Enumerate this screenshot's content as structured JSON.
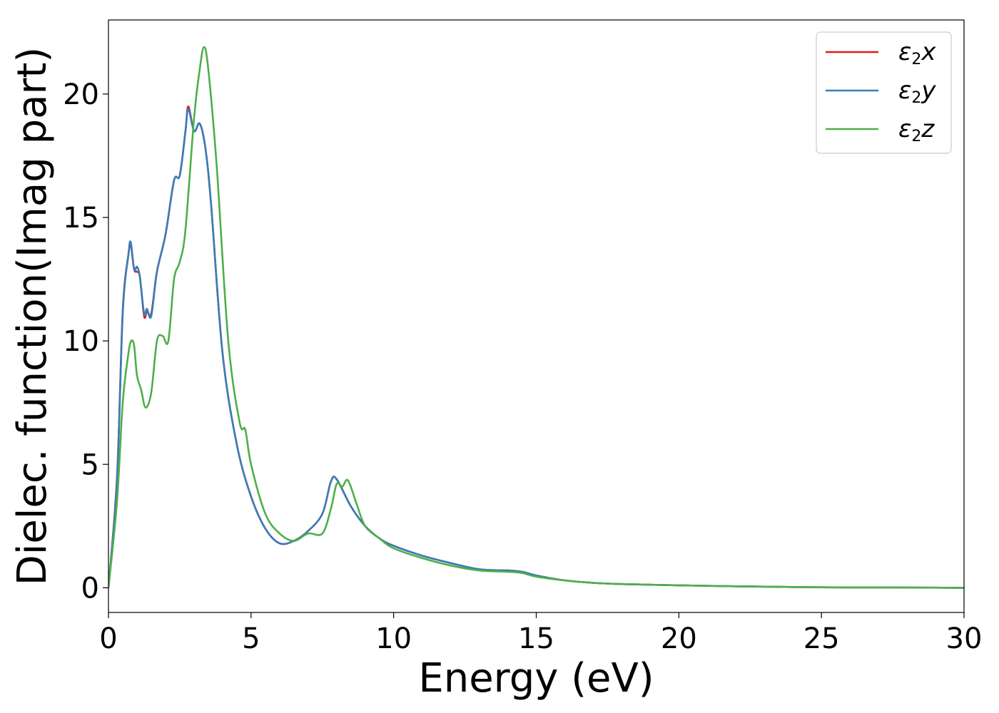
{
  "chart_data": {
    "type": "line",
    "title": "",
    "xlabel": "Energy (eV)",
    "ylabel": "Dielec. function(Imag part)",
    "xlim": [
      0,
      30
    ],
    "ylim": [
      -1,
      23
    ],
    "xticks": [
      0,
      5,
      10,
      15,
      20,
      25,
      30
    ],
    "yticks": [
      0,
      5,
      10,
      15,
      20
    ],
    "grid": false,
    "legend_position": "top-right",
    "series": [
      {
        "name": "ε2x",
        "legend": {
          "base": "ε",
          "sub": "2",
          "suffix": "x"
        },
        "color": "#e41a1c",
        "x": [
          0,
          0.3,
          0.5,
          0.7,
          0.78,
          0.9,
          1.0,
          1.1,
          1.25,
          1.35,
          1.5,
          1.7,
          2.0,
          2.3,
          2.5,
          2.7,
          2.8,
          3.0,
          3.2,
          3.4,
          3.6,
          4.0,
          4.5,
          5.0,
          5.5,
          6.0,
          6.5,
          7.0,
          7.5,
          7.8,
          8.0,
          8.5,
          9.0,
          9.5,
          10,
          11,
          12,
          13,
          14,
          14.5,
          15,
          16,
          17,
          18,
          20,
          22,
          25,
          28,
          30
        ],
        "y": [
          0,
          4.5,
          11.2,
          13.5,
          13.9,
          12.9,
          12.8,
          12.6,
          11.0,
          11.2,
          11.1,
          12.8,
          14.3,
          16.5,
          16.7,
          18.5,
          19.5,
          18.5,
          18.8,
          17.8,
          15.5,
          9.5,
          5.8,
          3.7,
          2.4,
          1.8,
          1.9,
          2.3,
          3.0,
          4.3,
          4.4,
          3.3,
          2.5,
          2.0,
          1.7,
          1.3,
          1.0,
          0.75,
          0.7,
          0.65,
          0.5,
          0.3,
          0.2,
          0.15,
          0.1,
          0.06,
          0.02,
          0.01,
          0.0
        ]
      },
      {
        "name": "ε2y",
        "legend": {
          "base": "ε",
          "sub": "2",
          "suffix": "y"
        },
        "color": "#377eb8",
        "x": [
          0,
          0.3,
          0.5,
          0.7,
          0.78,
          0.9,
          1.0,
          1.1,
          1.25,
          1.35,
          1.5,
          1.7,
          2.0,
          2.3,
          2.5,
          2.7,
          2.8,
          3.0,
          3.2,
          3.4,
          3.6,
          4.0,
          4.5,
          5.0,
          5.5,
          6.0,
          6.5,
          7.0,
          7.5,
          7.8,
          8.0,
          8.5,
          9.0,
          9.5,
          10,
          11,
          12,
          13,
          14,
          14.5,
          15,
          16,
          17,
          18,
          20,
          22,
          25,
          28,
          30
        ],
        "y": [
          0,
          4.4,
          11.1,
          13.5,
          14.0,
          12.9,
          13.0,
          12.6,
          11.1,
          11.3,
          11.0,
          12.8,
          14.3,
          16.5,
          16.7,
          18.5,
          19.4,
          18.5,
          18.8,
          17.8,
          15.5,
          9.5,
          5.8,
          3.7,
          2.4,
          1.8,
          1.9,
          2.3,
          3.0,
          4.3,
          4.4,
          3.3,
          2.5,
          2.0,
          1.7,
          1.3,
          1.0,
          0.75,
          0.7,
          0.65,
          0.5,
          0.3,
          0.2,
          0.15,
          0.1,
          0.06,
          0.02,
          0.01,
          0.0
        ]
      },
      {
        "name": "ε2z",
        "legend": {
          "base": "ε",
          "sub": "2",
          "suffix": "z"
        },
        "color": "#4daf4a",
        "x": [
          0,
          0.3,
          0.5,
          0.7,
          0.8,
          0.9,
          1.0,
          1.15,
          1.3,
          1.5,
          1.7,
          1.9,
          2.1,
          2.3,
          2.5,
          2.7,
          3.0,
          3.2,
          3.35,
          3.5,
          3.8,
          4.2,
          4.6,
          4.8,
          5.0,
          5.5,
          6.0,
          6.5,
          7.0,
          7.5,
          7.8,
          8.0,
          8.2,
          8.4,
          8.7,
          9.0,
          9.5,
          10,
          11,
          12,
          13,
          14,
          14.5,
          15,
          16,
          17,
          18,
          20,
          22,
          25,
          28,
          30
        ],
        "y": [
          0,
          3.5,
          7.5,
          9.5,
          10.0,
          9.8,
          8.6,
          8.0,
          7.3,
          7.9,
          10.0,
          10.2,
          10.0,
          12.5,
          13.2,
          14.5,
          19.0,
          21.0,
          21.9,
          21.0,
          17.0,
          10.0,
          6.7,
          6.4,
          5.0,
          3.0,
          2.2,
          1.9,
          2.2,
          2.2,
          3.2,
          4.2,
          4.1,
          4.35,
          3.4,
          2.5,
          2.0,
          1.6,
          1.2,
          0.9,
          0.7,
          0.65,
          0.6,
          0.45,
          0.3,
          0.2,
          0.15,
          0.1,
          0.06,
          0.02,
          0.01,
          0.0
        ]
      }
    ]
  }
}
